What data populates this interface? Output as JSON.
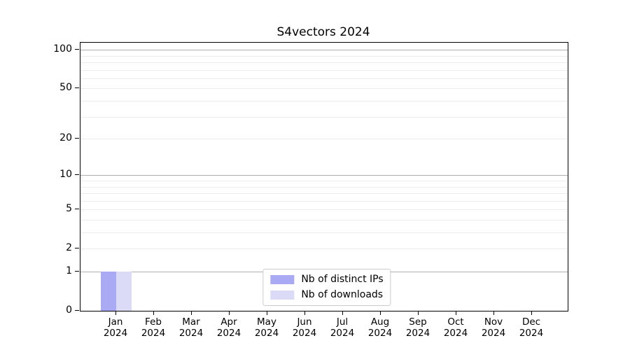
{
  "chart_data": {
    "type": "bar",
    "title": "S4vectors 2024",
    "categories": [
      "Jan 2024",
      "Feb 2024",
      "Mar 2024",
      "Apr 2024",
      "May 2024",
      "Jun 2024",
      "Jul 2024",
      "Aug 2024",
      "Sep 2024",
      "Oct 2024",
      "Nov 2024",
      "Dec 2024"
    ],
    "x_tick_months": [
      "Jan",
      "Feb",
      "Mar",
      "Apr",
      "May",
      "Jun",
      "Jul",
      "Aug",
      "Sep",
      "Oct",
      "Nov",
      "Dec"
    ],
    "x_tick_year": "2024",
    "series": [
      {
        "name": "Nb of distinct IPs",
        "color": "#a9a9f4",
        "values": [
          1,
          0,
          0,
          0,
          0,
          0,
          0,
          0,
          0,
          0,
          0,
          0
        ]
      },
      {
        "name": "Nb of downloads",
        "color": "#dbdbf8",
        "values": [
          1,
          0,
          0,
          0,
          0,
          0,
          0,
          0,
          0,
          0,
          0,
          0
        ]
      }
    ],
    "xlabel": "",
    "ylabel": "",
    "y_ticks": [
      0,
      1,
      2,
      5,
      10,
      20,
      50,
      100
    ],
    "y_scale": "log10(1+v)",
    "ylim": [
      0,
      113
    ],
    "grid": true,
    "y_major_gridlines": [
      1,
      10,
      100
    ],
    "y_minor_gridlines": [
      2,
      3,
      4,
      5,
      6,
      7,
      8,
      9,
      20,
      30,
      40,
      50,
      60,
      70,
      80,
      90
    ],
    "legend_position": "lower center",
    "colors": {
      "axis": "#000000",
      "text": "#000000",
      "major_grid": "#b0b0b0",
      "minor_grid": "#ebebeb",
      "legend_border": "#cccccc",
      "background": "#ffffff"
    }
  }
}
